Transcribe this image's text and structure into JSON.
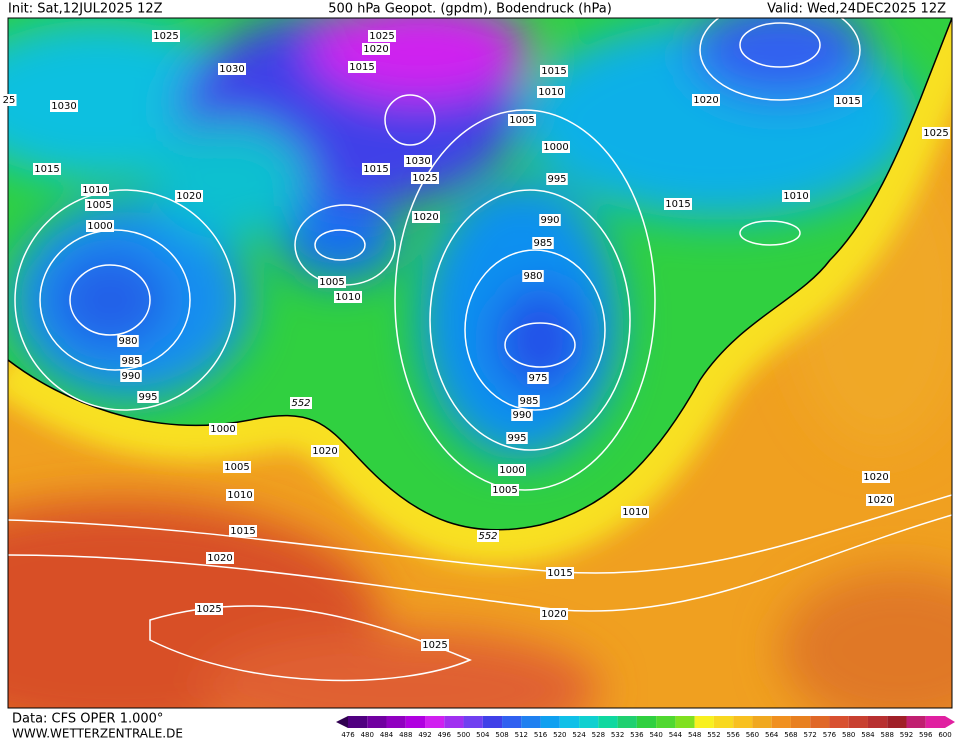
{
  "header": {
    "init": "Init: Sat,12JUL2025 12Z",
    "title": "500 hPa Geopot. (gpdm), Bodendruck (hPa)",
    "valid": "Valid: Wed,24DEC2025 12Z"
  },
  "isobar_labels": [
    1025,
    1030,
    1030,
    1015,
    1010,
    1005,
    1000,
    1020,
    980,
    985,
    990,
    995,
    1000,
    1005,
    1010,
    1015,
    1020,
    1025,
    1025,
    1020,
    1025,
    1020,
    1015,
    1030,
    1015,
    1025,
    1020,
    1005,
    1010,
    1015,
    1010,
    1005,
    1000,
    995,
    990,
    985,
    980,
    975,
    985,
    990,
    995,
    1000,
    1005,
    1010,
    1015,
    1020,
    1020,
    1015,
    1025,
    1015,
    1010,
    1020,
    1020,
    25
  ],
  "contour_labels": [
    552,
    552
  ],
  "legend": {
    "values": [
      476,
      480,
      484,
      488,
      492,
      496,
      500,
      504,
      508,
      512,
      516,
      520,
      524,
      528,
      532,
      536,
      540,
      544,
      548,
      552,
      556,
      560,
      564,
      568,
      572,
      576,
      580,
      584,
      588,
      592,
      596,
      600
    ]
  },
  "footer": {
    "data": "Data: CFS OPER 1.000°",
    "site": "WWW.WETTERZENTRALE.DE"
  }
}
